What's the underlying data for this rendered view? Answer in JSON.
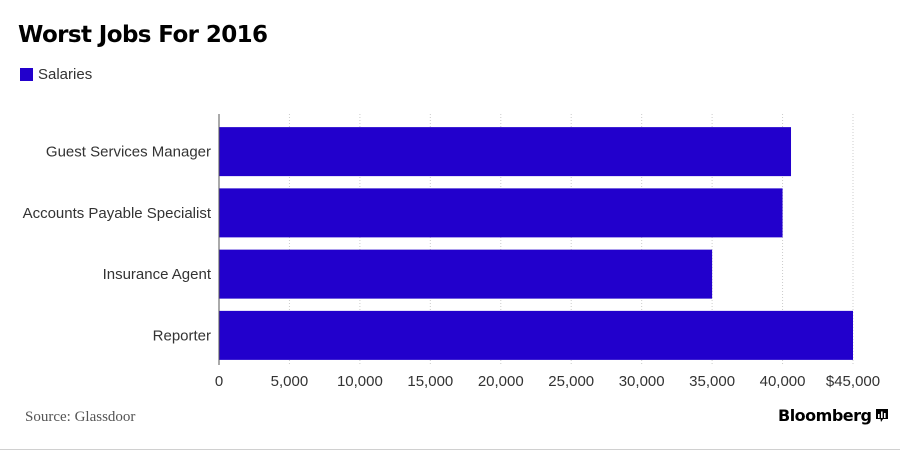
{
  "header": {
    "title": "Worst Jobs For 2016"
  },
  "footer": {
    "source": "Source: Glassdoor",
    "brand": "Bloomberg",
    "brand_icon": "bloomberg-chart-icon"
  },
  "colors": {
    "bar": "#2200cc",
    "grid": "#cccccc",
    "axis": "#555555",
    "label": "#333333"
  },
  "chart_data": {
    "type": "bar",
    "orientation": "horizontal",
    "categories": [
      "Guest Services Manager",
      "Accounts Payable Specialist",
      "Insurance Agent",
      "Reporter"
    ],
    "series": [
      {
        "name": "Salaries",
        "values": [
          40600,
          40000,
          35000,
          45000
        ]
      }
    ],
    "xlim": [
      0,
      45000
    ],
    "xticks": [
      0,
      5000,
      10000,
      15000,
      20000,
      25000,
      30000,
      35000,
      40000,
      45000
    ],
    "xtick_labels": [
      "0",
      "5,000",
      "10,000",
      "15,000",
      "20,000",
      "25,000",
      "30,000",
      "35,000",
      "40,000",
      "$45,000"
    ],
    "grid": true,
    "legend": "top-left"
  }
}
